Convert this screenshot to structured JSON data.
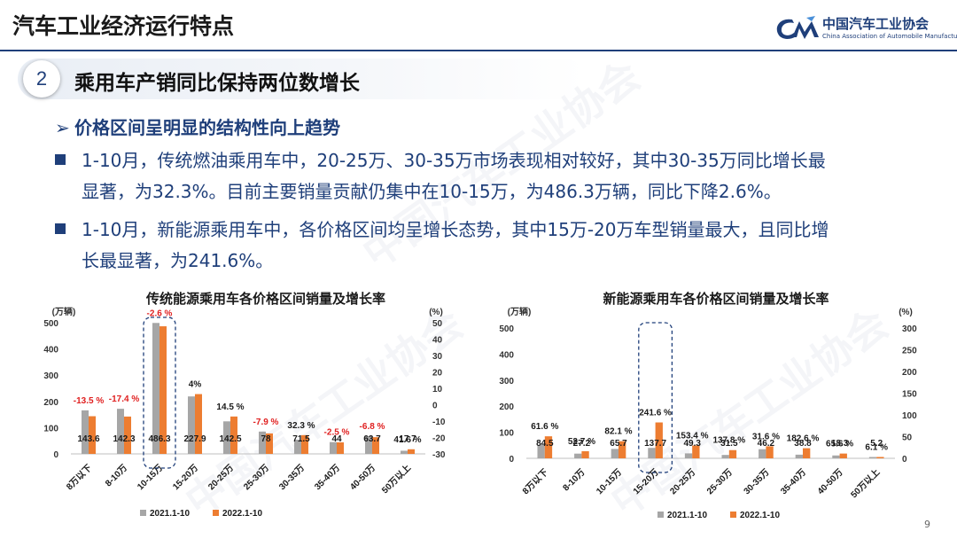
{
  "header": {
    "title": "汽车工业经济运行特点",
    "logo_cn": "中国汽车工业协会",
    "logo_en": "China Association of Automobile Manufacturers",
    "watermark": "中国汽车工业协会"
  },
  "section": {
    "number": "2",
    "title": "乘用车产销同比保持两位数增长"
  },
  "subhead": "价格区间呈明显的结构性向上趋势",
  "bullets": [
    {
      "line1": "1-10月，传统燃油乘用车中，20-25万、30-35万市场表现相对较好，其中30-35万同比增长最",
      "line2": "显著，为32.3%。目前主要销量贡献仍集中在10-15万，为486.3万辆，同比下降2.6%。"
    },
    {
      "line1": "1-10月，新能源乘用车中，各价格区间均呈增长态势，其中15万-20万车型销量最大，且同比增",
      "line2": "长最显著，为241.6%。"
    }
  ],
  "page_number": "9",
  "colors": {
    "navy": "#1f3f7a",
    "series_2021": "#a6a6a6",
    "series_2022": "#ed7d31",
    "negative_label": "#e02020"
  },
  "chart_data": [
    {
      "type": "bar",
      "title": "传统能源乘用车各价格区间销量及增长率",
      "ylabel": "(万辆)",
      "y2label": "(%)",
      "ylim": [
        0,
        500
      ],
      "yticks": [
        "0",
        "100",
        "200",
        "300",
        "400",
        "500"
      ],
      "y2ticks": [
        "-30",
        "-20",
        "-10",
        "0",
        "10",
        "20",
        "30",
        "40",
        "50"
      ],
      "categories": [
        "8万以下",
        "8-10万",
        "10-15万",
        "15-20万",
        "20-25万",
        "25-30万",
        "30-35万",
        "35-40万",
        "40-50万",
        "50万以上"
      ],
      "series": [
        {
          "name": "2021.1-10",
          "values": [
            166,
            172,
            499,
            219,
            124,
            85,
            54,
            45,
            68,
            12
          ]
        },
        {
          "name": "2022.1-10",
          "values": [
            143.6,
            142.3,
            486.3,
            227.9,
            142.5,
            78,
            71.5,
            44,
            63.7,
            17.7
          ]
        }
      ],
      "value_labels": [
        "143.6",
        "142.3",
        "486.3",
        "227.9",
        "142.5",
        "78",
        "71.5",
        "44",
        "63.7",
        "17.7"
      ],
      "growth_labels": [
        "-13.5 %",
        "-17.4 %",
        "-2.6 %",
        "4%",
        "14.5 %",
        "-7.9 %",
        "32.3 %",
        "-2.5 %",
        "-6.8 %",
        "41.6 %"
      ],
      "growth_negative": [
        true,
        true,
        true,
        false,
        false,
        true,
        false,
        true,
        true,
        false
      ],
      "highlight_category": "10-15万",
      "legend": [
        "2021.1-10",
        "2022.1-10"
      ]
    },
    {
      "type": "bar",
      "title": "新能源乘用车各价格区间销量及增长率",
      "ylabel": "(万辆)",
      "y2label": "(%)",
      "ylim": [
        0,
        500
      ],
      "yticks": [
        "0",
        "100",
        "200",
        "300",
        "400",
        "500"
      ],
      "y2ticks": [
        "0",
        "50",
        "100",
        "150",
        "200",
        "250",
        "300"
      ],
      "categories": [
        "8万以下",
        "8-10万",
        "10-15万",
        "15-20万",
        "20-25万",
        "25-30万",
        "30-35万",
        "35-40万",
        "40-50万",
        "50万以上"
      ],
      "series": [
        {
          "name": "2021.1-10",
          "values": [
            52,
            18,
            36,
            40,
            19,
            13,
            35,
            14,
            11,
            5
          ]
        },
        {
          "name": "2022.1-10",
          "values": [
            84.5,
            27.2,
            65.7,
            137.7,
            49.3,
            31.5,
            46.2,
            38.8,
            18.3,
            5.2
          ]
        }
      ],
      "value_labels": [
        "84.5",
        "27.2",
        "65.7",
        "137.7",
        "49.3",
        "31.5",
        "46.2",
        "38.8",
        "18.3",
        "5.2"
      ],
      "growth_labels": [
        "61.6 %",
        "52.7 %",
        "82.1 %",
        "241.6 %",
        "153.4 %",
        "137.8 %",
        "31.6 %",
        "182.6 %",
        "65.6 %",
        "6.1 %"
      ],
      "growth_negative": [
        false,
        false,
        false,
        false,
        false,
        false,
        false,
        false,
        false,
        false
      ],
      "highlight_category": "15-20万",
      "legend": [
        "2021.1-10",
        "2022.1-10"
      ]
    }
  ]
}
